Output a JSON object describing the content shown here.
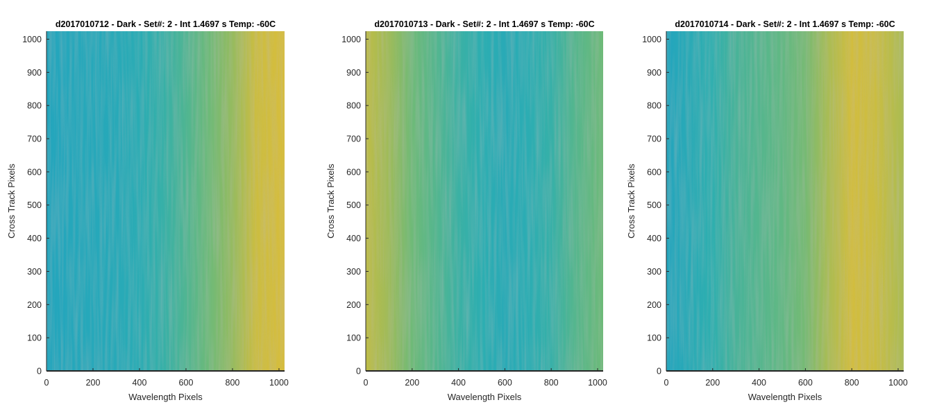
{
  "chart_data": [
    {
      "type": "heatmap",
      "title": "d2017010712 - Dark - Set#: 2 - Int 1.4697 s Temp: -60C",
      "xlabel": "Wavelength Pixels",
      "ylabel": "Cross Track Pixels",
      "xlim": [
        0,
        1024
      ],
      "ylim": [
        0,
        1024
      ],
      "xticks": [
        0,
        200,
        400,
        600,
        800,
        1000
      ],
      "yticks": [
        0,
        100,
        200,
        300,
        400,
        500,
        600,
        700,
        800,
        900,
        1000
      ],
      "colormap": "parula",
      "column_profile": {
        "x": [
          0,
          100,
          200,
          300,
          400,
          500,
          600,
          700,
          800,
          900,
          1024
        ],
        "level": [
          0.15,
          0.18,
          0.2,
          0.22,
          0.28,
          0.38,
          0.48,
          0.6,
          0.7,
          0.85,
          0.9
        ]
      }
    },
    {
      "type": "heatmap",
      "title": "d2017010713 - Dark - Set#: 2 - Int 1.4697 s Temp: -60C",
      "xlabel": "Wavelength Pixels",
      "ylabel": "Cross Track Pixels",
      "xlim": [
        0,
        1024
      ],
      "ylim": [
        0,
        1024
      ],
      "xticks": [
        0,
        200,
        400,
        600,
        800,
        1000
      ],
      "yticks": [
        0,
        100,
        200,
        300,
        400,
        500,
        600,
        700,
        800,
        900,
        1000
      ],
      "colormap": "parula",
      "column_profile": {
        "x": [
          0,
          100,
          200,
          300,
          400,
          500,
          600,
          700,
          800,
          900,
          1024
        ],
        "level": [
          0.8,
          0.72,
          0.6,
          0.5,
          0.4,
          0.32,
          0.25,
          0.3,
          0.38,
          0.5,
          0.6
        ]
      }
    },
    {
      "type": "heatmap",
      "title": "d2017010714 - Dark - Set#: 2 - Int 1.4697 s Temp: -60C",
      "xlabel": "Wavelength Pixels",
      "ylabel": "Cross Track Pixels",
      "xlim": [
        0,
        1024
      ],
      "ylim": [
        0,
        1024
      ],
      "xticks": [
        0,
        200,
        400,
        600,
        800,
        1000
      ],
      "yticks": [
        0,
        100,
        200,
        300,
        400,
        500,
        600,
        700,
        800,
        900,
        1000
      ],
      "colormap": "parula",
      "column_profile": {
        "x": [
          0,
          100,
          200,
          300,
          400,
          500,
          600,
          700,
          800,
          900,
          1024
        ],
        "level": [
          0.15,
          0.25,
          0.35,
          0.45,
          0.5,
          0.55,
          0.62,
          0.75,
          0.88,
          0.85,
          0.75
        ]
      }
    }
  ]
}
